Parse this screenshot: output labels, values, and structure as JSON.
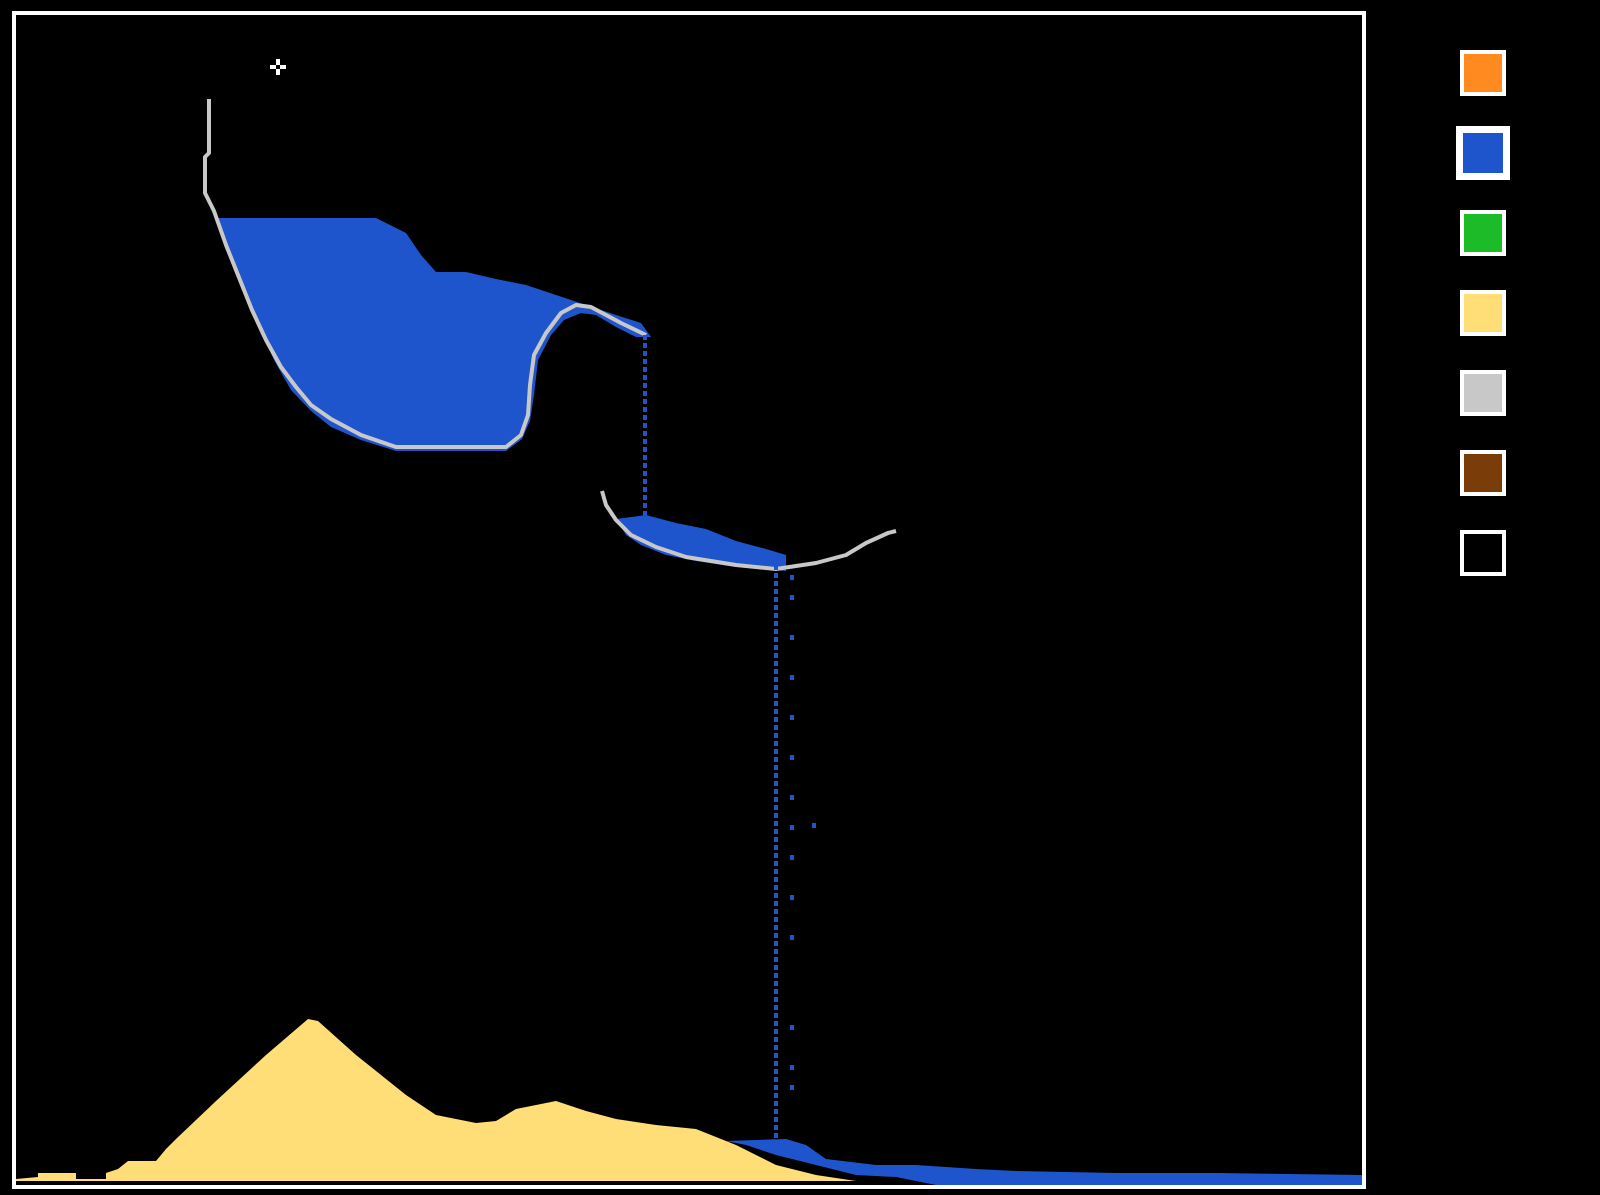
{
  "palette": {
    "selected": "water",
    "materials": [
      {
        "id": "fire",
        "icon": "fire-material-icon",
        "color": "#ff8a1f"
      },
      {
        "id": "water",
        "icon": "water-material-icon",
        "color": "#1f55cc"
      },
      {
        "id": "plant",
        "icon": "plant-material-icon",
        "color": "#1cbb28"
      },
      {
        "id": "sand",
        "icon": "sand-material-icon",
        "color": "#ffdd77"
      },
      {
        "id": "wall",
        "icon": "wall-material-icon",
        "color": "#c8c8c8"
      },
      {
        "id": "wood",
        "icon": "wood-material-icon",
        "color": "#7a3c08"
      },
      {
        "id": "empty",
        "icon": "eraser-icon",
        "color": "#000000"
      }
    ]
  },
  "scene": {
    "background": "#000000",
    "border_color": "#ffffff",
    "cursor_icon": "crosshair-cursor-icon"
  }
}
